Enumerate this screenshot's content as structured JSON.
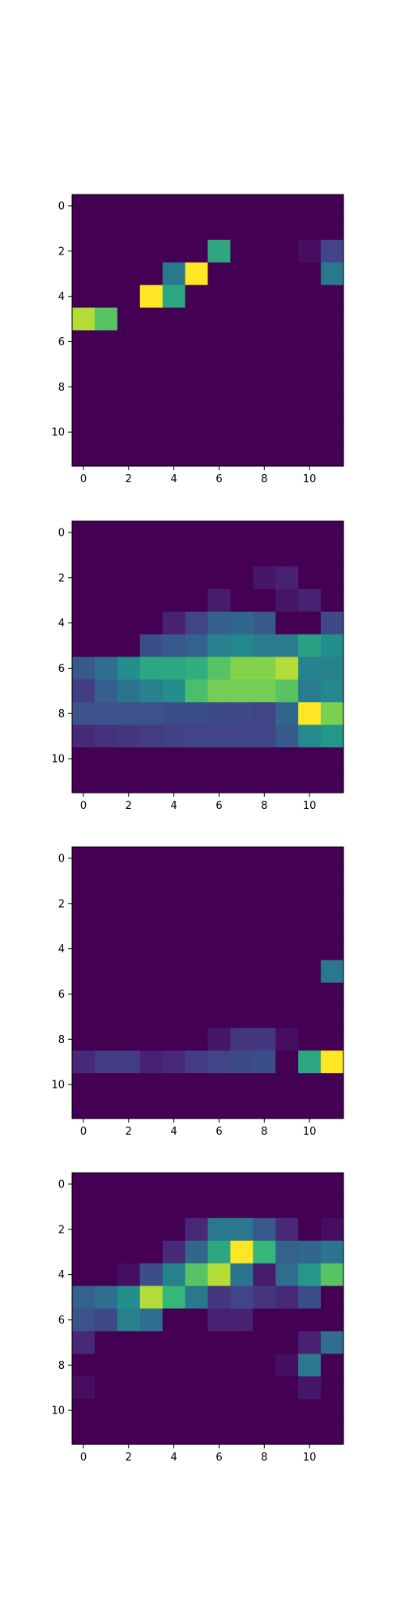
{
  "chart_data": [
    {
      "type": "heatmap",
      "colormap": "viridis",
      "x_ticks": [
        "0",
        "2",
        "4",
        "6",
        "8",
        "10"
      ],
      "y_ticks": [
        "0",
        "2",
        "4",
        "6",
        "8",
        "10"
      ],
      "vmin": 0,
      "vmax": 1,
      "values": [
        [
          0,
          0,
          0,
          0,
          0,
          0,
          0,
          0,
          0,
          0,
          0,
          0
        ],
        [
          0,
          0,
          0,
          0,
          0,
          0,
          0,
          0,
          0,
          0,
          0,
          0
        ],
        [
          0,
          0,
          0,
          0,
          0,
          0,
          0.7,
          0,
          0,
          0,
          0.05,
          0.25
        ],
        [
          0,
          0,
          0,
          0,
          0.5,
          1.0,
          0,
          0,
          0,
          0,
          0,
          0.5
        ],
        [
          0,
          0,
          0,
          1.0,
          0.7,
          0,
          0,
          0,
          0,
          0,
          0,
          0
        ],
        [
          0.92,
          0.8,
          0,
          0,
          0,
          0,
          0,
          0,
          0,
          0,
          0,
          0
        ],
        [
          0,
          0,
          0,
          0,
          0,
          0,
          0,
          0,
          0,
          0,
          0,
          0
        ],
        [
          0,
          0,
          0,
          0,
          0,
          0,
          0,
          0,
          0,
          0,
          0,
          0
        ],
        [
          0,
          0,
          0,
          0,
          0,
          0,
          0,
          0,
          0,
          0,
          0,
          0
        ],
        [
          0,
          0,
          0,
          0,
          0,
          0,
          0,
          0,
          0,
          0,
          0,
          0
        ],
        [
          0,
          0,
          0,
          0,
          0,
          0,
          0,
          0,
          0,
          0,
          0,
          0
        ],
        [
          0,
          0,
          0,
          0,
          0,
          0,
          0,
          0,
          0,
          0,
          0,
          0
        ]
      ]
    },
    {
      "type": "heatmap",
      "colormap": "viridis",
      "x_ticks": [
        "0",
        "2",
        "4",
        "6",
        "8",
        "10"
      ],
      "y_ticks": [
        "0",
        "2",
        "4",
        "6",
        "8",
        "10"
      ],
      "vmin": 0,
      "vmax": 1,
      "values": [
        [
          0,
          0,
          0,
          0,
          0,
          0,
          0,
          0,
          0,
          0,
          0,
          0
        ],
        [
          0,
          0,
          0,
          0,
          0,
          0,
          0,
          0,
          0,
          0,
          0,
          0
        ],
        [
          0,
          0,
          0,
          0,
          0,
          0,
          0,
          0,
          0.08,
          0.12,
          0,
          0
        ],
        [
          0,
          0,
          0,
          0,
          0,
          0,
          0.1,
          0,
          0,
          0.08,
          0.12,
          0
        ],
        [
          0,
          0,
          0,
          0,
          0.12,
          0.25,
          0.38,
          0.42,
          0.35,
          0,
          0,
          0.28
        ],
        [
          0,
          0,
          0,
          0.3,
          0.35,
          0.4,
          0.55,
          0.58,
          0.52,
          0.52,
          0.68,
          0.62
        ],
        [
          0.35,
          0.45,
          0.62,
          0.7,
          0.7,
          0.72,
          0.8,
          0.86,
          0.86,
          0.92,
          0.55,
          0.55
        ],
        [
          0.22,
          0.38,
          0.48,
          0.55,
          0.62,
          0.78,
          0.84,
          0.84,
          0.84,
          0.8,
          0.52,
          0.58
        ],
        [
          0.32,
          0.32,
          0.32,
          0.32,
          0.3,
          0.3,
          0.28,
          0.28,
          0.25,
          0.42,
          1.0,
          0.85
        ],
        [
          0.15,
          0.18,
          0.2,
          0.22,
          0.24,
          0.25,
          0.25,
          0.25,
          0.25,
          0.35,
          0.6,
          0.65
        ],
        [
          0,
          0,
          0,
          0,
          0,
          0,
          0,
          0,
          0,
          0,
          0,
          0
        ],
        [
          0,
          0,
          0,
          0,
          0,
          0,
          0,
          0,
          0,
          0,
          0,
          0
        ]
      ]
    },
    {
      "type": "heatmap",
      "colormap": "viridis",
      "x_ticks": [
        "0",
        "2",
        "4",
        "6",
        "8",
        "10"
      ],
      "y_ticks": [
        "0",
        "2",
        "4",
        "6",
        "8",
        "10"
      ],
      "vmin": 0,
      "vmax": 1,
      "values": [
        [
          0,
          0,
          0,
          0,
          0,
          0,
          0,
          0,
          0,
          0,
          0,
          0
        ],
        [
          0,
          0,
          0,
          0,
          0,
          0,
          0,
          0,
          0,
          0,
          0,
          0
        ],
        [
          0,
          0,
          0,
          0,
          0,
          0,
          0,
          0,
          0,
          0,
          0,
          0
        ],
        [
          0,
          0,
          0,
          0,
          0,
          0,
          0,
          0,
          0,
          0,
          0,
          0
        ],
        [
          0,
          0,
          0,
          0,
          0,
          0,
          0,
          0,
          0,
          0,
          0,
          0
        ],
        [
          0,
          0,
          0,
          0,
          0,
          0,
          0,
          0,
          0,
          0,
          0,
          0.5
        ],
        [
          0,
          0,
          0,
          0,
          0,
          0,
          0,
          0,
          0,
          0,
          0,
          0
        ],
        [
          0,
          0,
          0,
          0,
          0,
          0,
          0,
          0,
          0,
          0,
          0,
          0
        ],
        [
          0,
          0,
          0,
          0,
          0,
          0,
          0.08,
          0.2,
          0.2,
          0.05,
          0,
          0
        ],
        [
          0.15,
          0.22,
          0.22,
          0.12,
          0.15,
          0.22,
          0.25,
          0.28,
          0.3,
          0,
          0.7,
          1.0
        ],
        [
          0,
          0,
          0,
          0,
          0,
          0,
          0,
          0,
          0,
          0,
          0,
          0
        ],
        [
          0,
          0,
          0,
          0,
          0,
          0,
          0,
          0,
          0,
          0,
          0,
          0
        ]
      ]
    },
    {
      "type": "heatmap",
      "colormap": "viridis",
      "x_ticks": [
        "0",
        "2",
        "4",
        "6",
        "8",
        "10"
      ],
      "y_ticks": [
        "0",
        "2",
        "4",
        "6",
        "8",
        "10"
      ],
      "vmin": 0,
      "vmax": 1,
      "values": [
        [
          0,
          0,
          0,
          0,
          0,
          0,
          0,
          0,
          0,
          0,
          0,
          0
        ],
        [
          0,
          0,
          0,
          0,
          0,
          0,
          0,
          0,
          0,
          0,
          0,
          0
        ],
        [
          0,
          0,
          0,
          0,
          0,
          0.15,
          0.5,
          0.5,
          0.35,
          0.15,
          0,
          0.05
        ],
        [
          0,
          0,
          0,
          0,
          0.15,
          0.42,
          0.7,
          1.0,
          0.75,
          0.4,
          0.42,
          0.48
        ],
        [
          0,
          0,
          0.05,
          0.3,
          0.55,
          0.8,
          0.92,
          0.48,
          0.1,
          0.45,
          0.65,
          0.8
        ],
        [
          0.4,
          0.45,
          0.62,
          0.92,
          0.75,
          0.5,
          0.2,
          0.25,
          0.2,
          0.15,
          0.3,
          0
        ],
        [
          0.32,
          0.28,
          0.55,
          0.45,
          0,
          0,
          0.12,
          0.12,
          0,
          0,
          0,
          0
        ],
        [
          0.15,
          0,
          0,
          0,
          0,
          0,
          0,
          0,
          0,
          0,
          0.12,
          0.45
        ],
        [
          0,
          0,
          0,
          0,
          0,
          0,
          0,
          0,
          0,
          0.05,
          0.5,
          0
        ],
        [
          0.05,
          0,
          0,
          0,
          0,
          0,
          0,
          0,
          0,
          0,
          0.08,
          0
        ],
        [
          0,
          0,
          0,
          0,
          0,
          0,
          0,
          0,
          0,
          0,
          0,
          0
        ],
        [
          0,
          0,
          0,
          0,
          0,
          0,
          0,
          0,
          0,
          0,
          0,
          0
        ]
      ]
    }
  ]
}
